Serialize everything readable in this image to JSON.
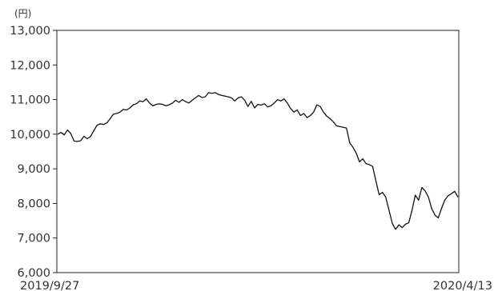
{
  "chart_data": {
    "type": "line",
    "title": "",
    "xlabel": "",
    "ylabel": "",
    "unit_label": "(円)",
    "ylim": [
      6000,
      13000
    ],
    "y_ticks": [
      "13,000",
      "12,000",
      "11,000",
      "10,000",
      "9,000",
      "8,000",
      "7,000",
      "6,000"
    ],
    "y_tick_values": [
      13000,
      12000,
      11000,
      10000,
      9000,
      8000,
      7000,
      6000
    ],
    "x_ticks": [
      "2019/9/27",
      "2020/4/13"
    ],
    "grid": false,
    "series": [
      {
        "values": [
          10000,
          10050,
          9980,
          10120,
          10020,
          9800,
          9790,
          9810,
          9940,
          9870,
          9930,
          10100,
          10260,
          10300,
          10280,
          10330,
          10450,
          10580,
          10600,
          10640,
          10720,
          10700,
          10760,
          10850,
          10880,
          10960,
          10940,
          11020,
          10900,
          10820,
          10860,
          10880,
          10860,
          10820,
          10850,
          10900,
          10980,
          10920,
          11000,
          10940,
          10900,
          10980,
          11050,
          11120,
          11060,
          11080,
          11200,
          11180,
          11200,
          11150,
          11120,
          11100,
          11080,
          11050,
          10960,
          11050,
          11080,
          10980,
          10800,
          10950,
          10760,
          10860,
          10840,
          10880,
          10790,
          10820,
          10900,
          11000,
          10960,
          11020,
          10900,
          10740,
          10640,
          10700,
          10540,
          10600,
          10480,
          10540,
          10640,
          10850,
          10800,
          10640,
          10520,
          10450,
          10360,
          10240,
          10220,
          10200,
          10180,
          9750,
          9620,
          9450,
          9200,
          9290,
          9150,
          9120,
          9070,
          8650,
          8250,
          8320,
          8180,
          7800,
          7420,
          7250,
          7380,
          7300,
          7400,
          7440,
          7800,
          8240,
          8090,
          8460,
          8360,
          8180,
          7850,
          7660,
          7580,
          7860,
          8100,
          8220,
          8280,
          8350,
          8180
        ]
      }
    ]
  }
}
